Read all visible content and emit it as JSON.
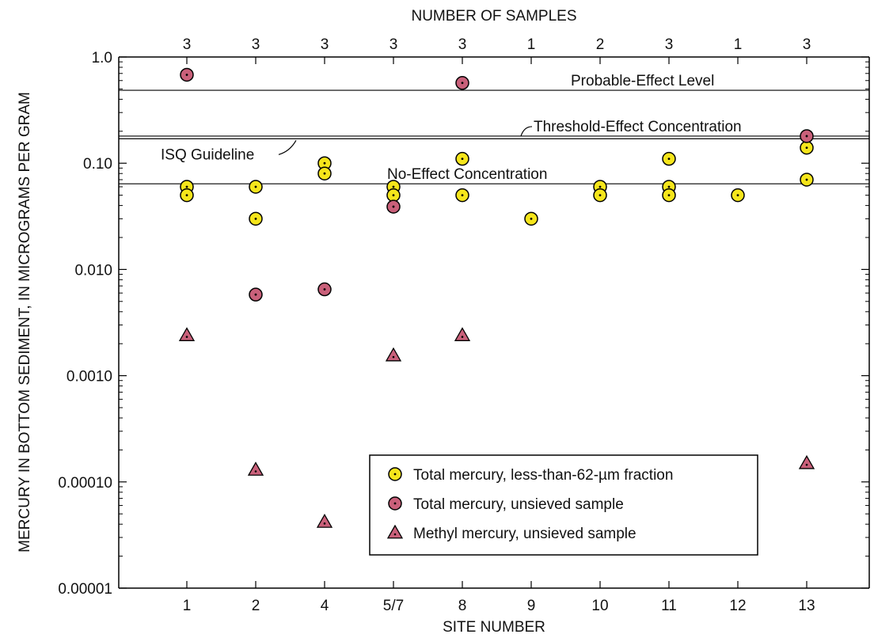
{
  "chart_data": {
    "type": "scatter",
    "title": "",
    "xlabel": "SITE NUMBER",
    "ylabel": "MERCURY IN BOTTOM SEDIMENT, IN MICROGRAMS PER GRAM",
    "top_axis_label": "NUMBER OF SAMPLES",
    "y_scale": "log",
    "ylim": [
      1e-05,
      1.0
    ],
    "y_tick_values": [
      1e-05,
      0.0001,
      0.001,
      0.01,
      0.1,
      1.0
    ],
    "y_tick_labels": [
      "0.00001",
      "0.00010",
      "0.0010",
      "0.010",
      "0.10",
      "1.0"
    ],
    "categories": [
      "1",
      "2",
      "4",
      "5/7",
      "8",
      "9",
      "10",
      "11",
      "12",
      "13"
    ],
    "sample_counts": [
      "3",
      "3",
      "3",
      "3",
      "3",
      "1",
      "2",
      "3",
      "1",
      "3"
    ],
    "grid": false,
    "legend_position": "bottom-right",
    "reference_lines": [
      {
        "name": "Probable-Effect Level",
        "value": 0.486
      },
      {
        "name": "Threshold-Effect Concentration",
        "value": 0.18
      },
      {
        "name": "ISQ Guideline",
        "value": 0.17
      },
      {
        "name": "No-Effect Concentration",
        "value": 0.064
      }
    ],
    "series": [
      {
        "name": "Total mercury, less-than-62-µm fraction",
        "marker": "circle",
        "color": "#f5e51b",
        "points": [
          [
            "1",
            0.06
          ],
          [
            "1",
            0.05
          ],
          [
            "2",
            0.06
          ],
          [
            "2",
            0.03
          ],
          [
            "4",
            0.1
          ],
          [
            "4",
            0.08
          ],
          [
            "5/7",
            0.06
          ],
          [
            "5/7",
            0.05
          ],
          [
            "8",
            0.11
          ],
          [
            "8",
            0.05
          ],
          [
            "9",
            0.03
          ],
          [
            "10",
            0.06
          ],
          [
            "10",
            0.05
          ],
          [
            "11",
            0.11
          ],
          [
            "11",
            0.06
          ],
          [
            "11",
            0.05
          ],
          [
            "12",
            0.05
          ],
          [
            "13",
            0.14
          ],
          [
            "13",
            0.07
          ]
        ]
      },
      {
        "name": "Total mercury, unsieved sample",
        "marker": "circle",
        "color": "#c9607a",
        "points": [
          [
            "1",
            0.68
          ],
          [
            "2",
            0.0058
          ],
          [
            "4",
            0.0065
          ],
          [
            "5/7",
            0.039
          ],
          [
            "8",
            0.57
          ],
          [
            "13",
            0.18
          ]
        ]
      },
      {
        "name": "Methyl mercury, unsieved sample",
        "marker": "triangle",
        "color": "#c9607a",
        "points": [
          [
            "1",
            0.0024
          ],
          [
            "2",
            0.00013
          ],
          [
            "4",
            4.2e-05
          ],
          [
            "5/7",
            0.00155
          ],
          [
            "8",
            0.0024
          ],
          [
            "13",
            0.00015
          ]
        ]
      }
    ]
  }
}
